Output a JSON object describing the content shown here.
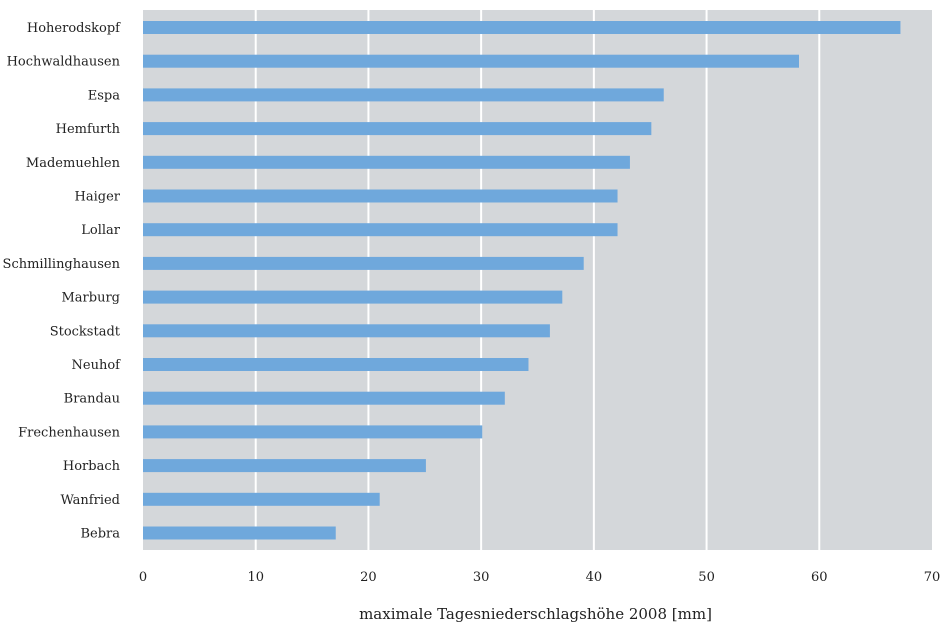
{
  "chart_data": {
    "type": "bar",
    "orientation": "horizontal",
    "title": "",
    "xlabel": "maximale Tagesniederschlagshöhe 2008  [mm]",
    "ylabel": "",
    "xlim": [
      0,
      70
    ],
    "xticks": [
      0,
      10,
      20,
      30,
      40,
      50,
      60,
      70
    ],
    "grid": true,
    "categories": [
      "Hoherodskopf",
      "Hochwaldhausen",
      "Espa",
      "Hemfurth",
      "Mademuehlen",
      "Haiger",
      "Lollar",
      "Schmillinghausen",
      "Marburg",
      "Stockstadt",
      "Neuhof",
      "Brandau",
      "Frechenhausen",
      "Horbach",
      "Wanfried",
      "Bebra"
    ],
    "values": [
      67.2,
      58.2,
      46.2,
      45.1,
      43.2,
      42.1,
      42.1,
      39.1,
      37.2,
      36.1,
      34.2,
      32.1,
      30.1,
      25.1,
      21.0,
      17.1
    ]
  },
  "colors": {
    "bar": "#6fa8dc",
    "plot_background": "#d4d7da",
    "grid": "#ffffff",
    "text": "#222222"
  }
}
